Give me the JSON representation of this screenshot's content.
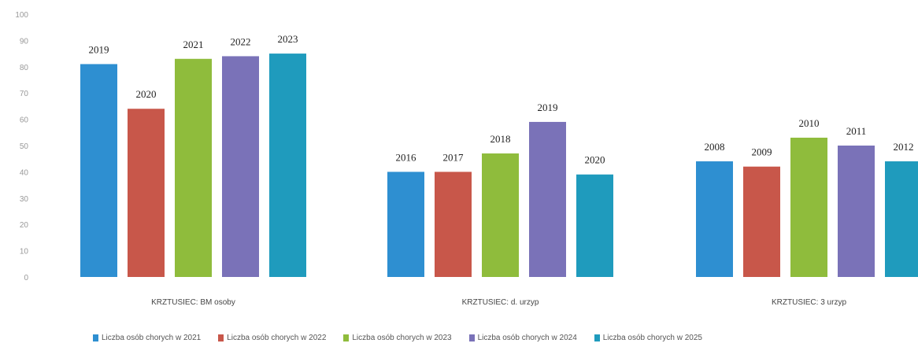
{
  "chart_data": {
    "type": "bar",
    "ylim": [
      0,
      100
    ],
    "yticks": [
      "100",
      "90",
      "80",
      "70",
      "60",
      "50",
      "40",
      "30",
      "20",
      "10",
      "0"
    ],
    "grid": false,
    "legend_position": "bottom",
    "groups": [
      {
        "category": "KRZTUSIEC: BM osoby",
        "bars": [
          {
            "label": "2019",
            "value": 81
          },
          {
            "label": "2020",
            "value": 64
          },
          {
            "label": "2021",
            "value": 83
          },
          {
            "label": "2022",
            "value": 84
          },
          {
            "label": "2023",
            "value": 85
          }
        ]
      },
      {
        "category": "KRZTUSIEC: d. urzyp",
        "bars": [
          {
            "label": "2016",
            "value": 40
          },
          {
            "label": "2017",
            "value": 40
          },
          {
            "label": "2018",
            "value": 47
          },
          {
            "label": "2019",
            "value": 59
          },
          {
            "label": "2020",
            "value": 39
          }
        ]
      },
      {
        "category": "KRZTUSIEC: 3 urzyp",
        "bars": [
          {
            "label": "2008",
            "value": 44
          },
          {
            "label": "2009",
            "value": 42
          },
          {
            "label": "2010",
            "value": 53
          },
          {
            "label": "2011",
            "value": 50
          },
          {
            "label": "2012",
            "value": 44
          }
        ]
      }
    ],
    "legend": [
      "Liczba osób chorych w 2021",
      "Liczba osób chorych w 2022",
      "Liczba osób chorych w 2023",
      "Liczba osób chorych w 2024",
      "Liczba osób chorych w 2025"
    ],
    "series_colors": [
      "#2e8fd1",
      "#c8574a",
      "#8fbc3c",
      "#7a72b8",
      "#1f9bbd"
    ]
  }
}
